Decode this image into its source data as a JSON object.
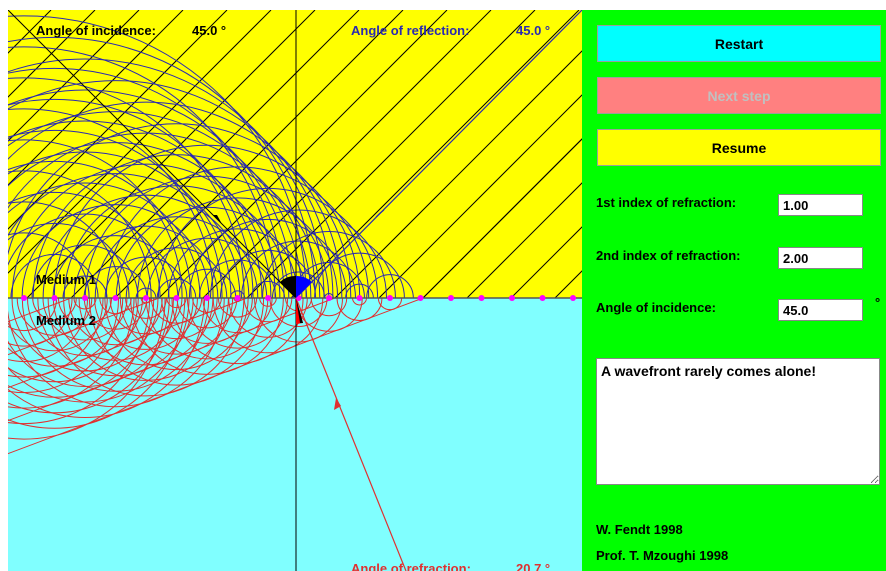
{
  "simulation": {
    "angle_incidence_label": "Angle of incidence:",
    "angle_incidence_value": "45.0 °",
    "angle_reflection_label": "Angle of reflection:",
    "angle_reflection_value": "45.0 °",
    "angle_refraction_label": "Angle of refraction:",
    "angle_refraction_value": "20.7 °",
    "medium1_label": "Medium 1",
    "medium2_label": "Medium 2",
    "colors": {
      "medium1": "#ffff00",
      "medium2": "#80ffff",
      "incident_wavefronts": "#000000",
      "wavelets_medium1": "#2a2ab0",
      "wavelets_medium2": "#e03030",
      "dots": "#ff00ff"
    }
  },
  "controls": {
    "restart_label": "Restart",
    "next_step_label": "Next step",
    "resume_label": "Resume",
    "index1_label": "1st index of refraction:",
    "index1_value": "1.00",
    "index2_label": "2nd index of refraction:",
    "index2_value": "2.00",
    "angle_label": "Angle of incidence:",
    "angle_value": "45.0",
    "angle_unit": "°",
    "message": "A wavefront rarely comes alone!",
    "colors": {
      "panel": "#00ff00",
      "restart": "#00ffff",
      "next_step": "#ff8080",
      "resume": "#ffff00",
      "disabled_text": "#c0c0c0"
    }
  },
  "credits": {
    "line1": "W. Fendt 1998",
    "line2": "Prof. T. Mzoughi 1998"
  }
}
